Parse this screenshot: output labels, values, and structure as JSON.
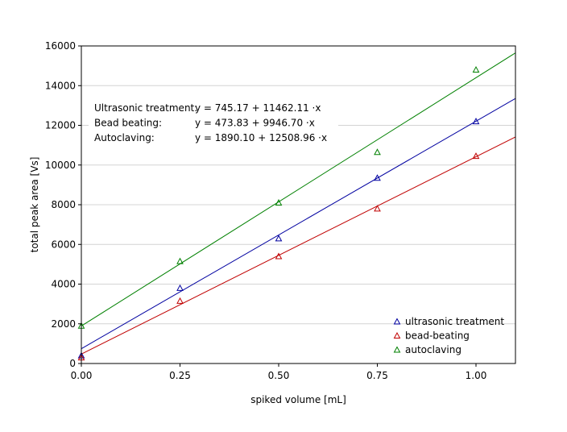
{
  "chart_data": {
    "type": "scatter",
    "title": "",
    "xlabel": "spiked volume [mL]",
    "ylabel": "total peak area [Vs]",
    "xlim": [
      0,
      1.1
    ],
    "ylim": [
      0,
      16000
    ],
    "x_ticks": [
      0,
      0.25,
      0.5,
      0.75,
      1.0
    ],
    "x_tick_labels": [
      "0.00",
      "0.25",
      "0.50",
      "0.75",
      "1.00"
    ],
    "y_ticks": [
      0,
      2000,
      4000,
      6000,
      8000,
      10000,
      12000,
      14000,
      16000
    ],
    "y_tick_labels": [
      "0",
      "2000",
      "4000",
      "6000",
      "8000",
      "10000",
      "12000",
      "14000",
      "16000"
    ],
    "grid": "horizontal",
    "legend_position": "bottom-right",
    "series": [
      {
        "name": "ultrasonic treatment",
        "color": "#0000a0",
        "marker": "triangle-open",
        "x": [
          0,
          0.25,
          0.5,
          0.75,
          1.0
        ],
        "y": [
          400,
          3800,
          6300,
          9350,
          12200
        ],
        "fit": {
          "intercept": 745.17,
          "slope": 11462.11
        }
      },
      {
        "name": "bead-beating",
        "color": "#c00000",
        "marker": "triangle-open",
        "x": [
          0,
          0.25,
          0.5,
          0.75,
          1.0
        ],
        "y": [
          300,
          3150,
          5400,
          7800,
          10450
        ],
        "fit": {
          "intercept": 473.83,
          "slope": 9946.7
        }
      },
      {
        "name": "autoclaving",
        "color": "#008000",
        "marker": "triangle-open",
        "x": [
          0,
          0.25,
          0.5,
          0.75,
          1.0
        ],
        "y": [
          1900,
          5150,
          8100,
          10650,
          14800
        ],
        "fit": {
          "intercept": 1890.1,
          "slope": 12508.96
        }
      }
    ],
    "equations": [
      {
        "label": "Ultrasonic treatment:",
        "formula": "y = 745.17 + 11462.11 ·x"
      },
      {
        "label": "Bead beating:",
        "formula": "y = 473.83 + 9946.70 ·x"
      },
      {
        "label": "Autoclaving:",
        "formula": "y = 1890.10 + 12508.96 ·x"
      }
    ]
  }
}
